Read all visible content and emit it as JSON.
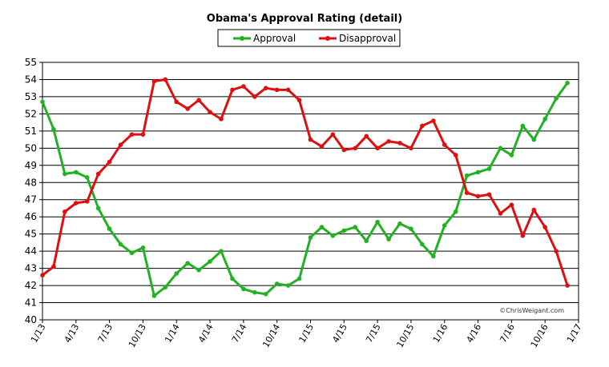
{
  "chart_data": {
    "type": "line",
    "title": "Obama's Approval Rating (detail)",
    "credit": "©ChrisWeigant.com",
    "ylim": [
      40,
      55
    ],
    "yticks": [
      40,
      41,
      42,
      43,
      44,
      45,
      46,
      47,
      48,
      49,
      50,
      51,
      52,
      53,
      54,
      55
    ],
    "grid": true,
    "legend": "top-center",
    "x_tick_labels": [
      "1/13",
      "4/13",
      "7/13",
      "10/13",
      "1/14",
      "4/14",
      "7/14",
      "10/14",
      "1/15",
      "4/15",
      "7/15",
      "10/15",
      "1/16",
      "4/16",
      "7/16",
      "10/16",
      "1/17"
    ],
    "x_tick_months": [
      0,
      3,
      6,
      9,
      12,
      15,
      18,
      21,
      24,
      27,
      30,
      33,
      36,
      39,
      42,
      45,
      48
    ],
    "x_range_months": [
      0,
      48
    ],
    "series": [
      {
        "name": "Approval",
        "color": "#22b122",
        "points": [
          [
            0,
            52.7
          ],
          [
            1,
            51.1
          ],
          [
            2,
            48.5
          ],
          [
            3,
            48.6
          ],
          [
            4,
            48.3
          ],
          [
            5,
            46.5
          ],
          [
            6,
            45.3
          ],
          [
            7,
            44.4
          ],
          [
            8,
            43.9
          ],
          [
            9,
            44.2
          ],
          [
            10,
            41.4
          ],
          [
            11,
            41.9
          ],
          [
            12,
            42.7
          ],
          [
            13,
            43.3
          ],
          [
            14,
            42.9
          ],
          [
            15,
            43.4
          ],
          [
            16,
            44.0
          ],
          [
            17,
            42.4
          ],
          [
            18,
            41.8
          ],
          [
            19,
            41.6
          ],
          [
            20,
            41.5
          ],
          [
            21,
            42.1
          ],
          [
            22,
            42.0
          ],
          [
            23,
            42.4
          ],
          [
            24,
            44.8
          ],
          [
            25,
            45.4
          ],
          [
            26,
            44.9
          ],
          [
            27,
            45.2
          ],
          [
            28,
            45.4
          ],
          [
            29,
            44.6
          ],
          [
            30,
            45.7
          ],
          [
            31,
            44.7
          ],
          [
            32,
            45.6
          ],
          [
            33,
            45.3
          ],
          [
            34,
            44.4
          ],
          [
            35,
            43.7
          ],
          [
            36,
            45.5
          ],
          [
            37,
            46.3
          ],
          [
            38,
            48.4
          ],
          [
            39,
            48.6
          ],
          [
            40,
            48.8
          ],
          [
            41,
            50.0
          ],
          [
            42,
            49.6
          ],
          [
            43,
            51.3
          ],
          [
            44,
            50.5
          ],
          [
            45,
            51.7
          ],
          [
            46,
            52.9
          ],
          [
            47,
            53.8
          ]
        ]
      },
      {
        "name": "Disapproval",
        "color": "#dd1010",
        "points": [
          [
            0,
            42.6
          ],
          [
            1,
            43.1
          ],
          [
            2,
            46.3
          ],
          [
            3,
            46.8
          ],
          [
            4,
            46.9
          ],
          [
            5,
            48.5
          ],
          [
            6,
            49.2
          ],
          [
            7,
            50.2
          ],
          [
            8,
            50.8
          ],
          [
            9,
            50.8
          ],
          [
            10,
            53.9
          ],
          [
            11,
            54.0
          ],
          [
            12,
            52.7
          ],
          [
            13,
            52.3
          ],
          [
            14,
            52.8
          ],
          [
            15,
            52.1
          ],
          [
            16,
            51.7
          ],
          [
            17,
            53.4
          ],
          [
            18,
            53.6
          ],
          [
            19,
            53.0
          ],
          [
            20,
            53.5
          ],
          [
            21,
            53.4
          ],
          [
            22,
            53.4
          ],
          [
            23,
            52.8
          ],
          [
            24,
            50.5
          ],
          [
            25,
            50.1
          ],
          [
            26,
            50.8
          ],
          [
            27,
            49.9
          ],
          [
            28,
            50.0
          ],
          [
            29,
            50.7
          ],
          [
            30,
            50.0
          ],
          [
            31,
            50.4
          ],
          [
            32,
            50.3
          ],
          [
            33,
            50.0
          ],
          [
            34,
            51.3
          ],
          [
            35,
            51.6
          ],
          [
            36,
            50.2
          ],
          [
            37,
            49.6
          ],
          [
            38,
            47.4
          ],
          [
            39,
            47.2
          ],
          [
            40,
            47.3
          ],
          [
            41,
            46.2
          ],
          [
            42,
            46.7
          ],
          [
            43,
            44.9
          ],
          [
            44,
            46.4
          ],
          [
            45,
            45.4
          ],
          [
            46,
            44.0
          ],
          [
            47,
            42.0
          ]
        ]
      }
    ]
  }
}
